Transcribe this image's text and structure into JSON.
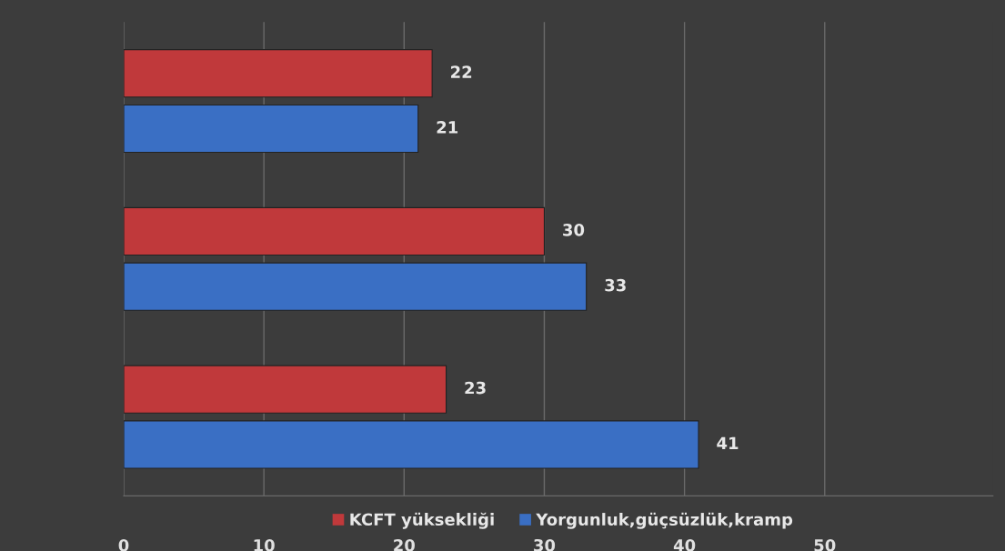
{
  "chart_data": {
    "type": "bar",
    "orientation": "horizontal",
    "categories": [
      null,
      null,
      null
    ],
    "series": [
      {
        "name": "KCFT yüksekliği",
        "color": "#c0393b",
        "values": [
          22,
          30,
          23
        ]
      },
      {
        "name": "Yorgunluk,güçsüzlük,kramp",
        "color": "#3a6fc4",
        "values": [
          21,
          33,
          41
        ]
      }
    ],
    "xlim": [
      0,
      62
    ],
    "xticks": [
      0,
      10,
      20,
      30,
      40,
      50
    ],
    "grid": "x",
    "legend": "bottom",
    "data_labels": true
  }
}
